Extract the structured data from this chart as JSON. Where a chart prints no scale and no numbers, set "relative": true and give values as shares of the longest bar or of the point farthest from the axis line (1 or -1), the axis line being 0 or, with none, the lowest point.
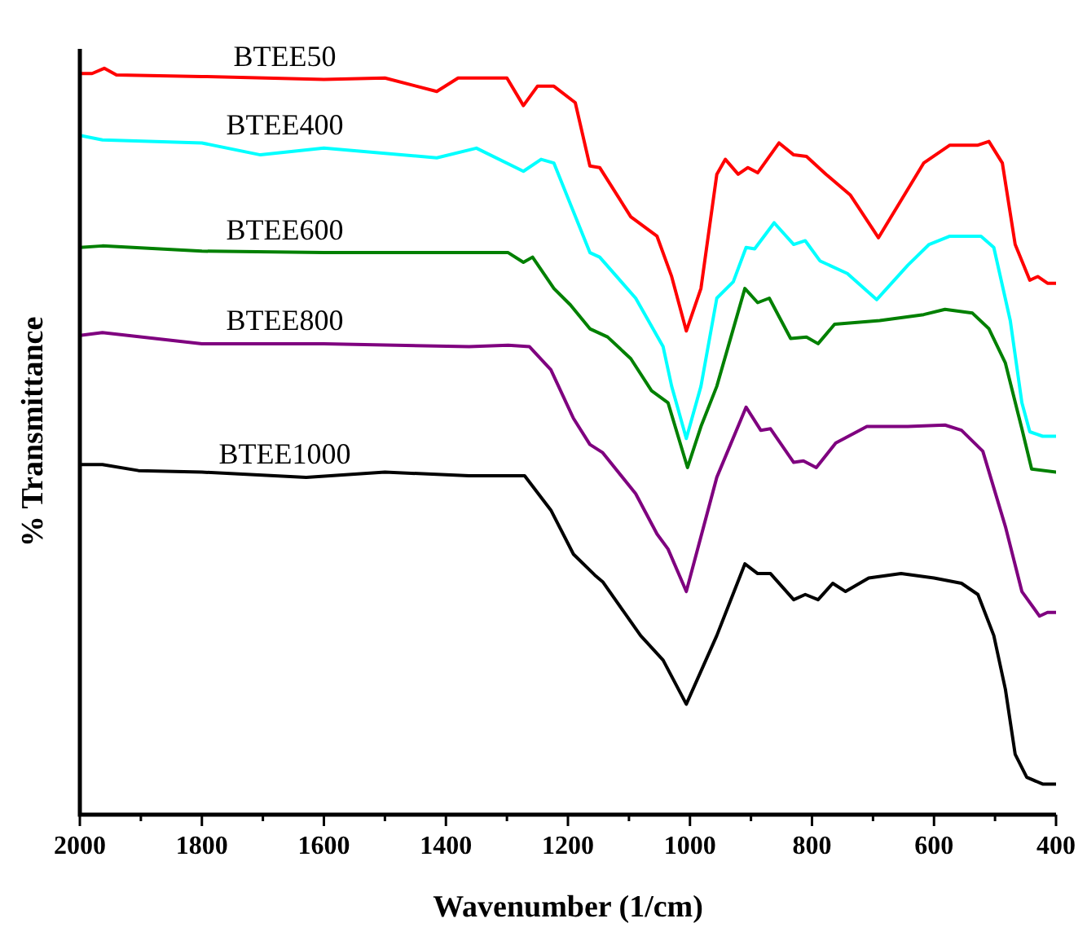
{
  "chart_data": {
    "type": "line",
    "relative": true,
    "xlabel": "Wavenumber (1/cm)",
    "ylabel": "% Transmittance",
    "xlim": [
      2000,
      400
    ],
    "xticks": [
      2000,
      {
        "value": 1900,
        "label": null
      },
      1800,
      {
        "value": 1700,
        "label": null
      },
      1600,
      {
        "value": 1500,
        "label": null
      },
      1400,
      {
        "value": 1300,
        "label": null
      },
      1200,
      {
        "value": 1100,
        "label": null
      },
      1000,
      {
        "value": 900,
        "label": null
      },
      800,
      {
        "value": 700,
        "label": null
      },
      600,
      {
        "value": 500,
        "label": null
      },
      400
    ],
    "tick_labels": "x",
    "legend": false,
    "marker": "none",
    "line_style": "solid",
    "series": [
      {
        "name": "BTEE50",
        "color": "#ff0000",
        "x": [
          2000,
          1980,
          1960,
          1940,
          1800,
          1600,
          1500,
          1415,
          1380,
          1300,
          1273,
          1250,
          1223,
          1188,
          1164,
          1148,
          1097,
          1054,
          1030,
          1006,
          982,
          956,
          942,
          921,
          905,
          889,
          854,
          830,
          809,
          777,
          737,
          691,
          654,
          617,
          574,
          528,
          510,
          488,
          467,
          443,
          430,
          414,
          400
        ],
        "values": [
          0.993,
          0.993,
          1.0,
          0.991,
          0.989,
          0.985,
          0.987,
          0.969,
          0.987,
          0.987,
          0.95,
          0.976,
          0.976,
          0.954,
          0.869,
          0.867,
          0.801,
          0.775,
          0.721,
          0.648,
          0.705,
          0.858,
          0.878,
          0.858,
          0.867,
          0.86,
          0.9,
          0.884,
          0.882,
          0.858,
          0.83,
          0.773,
          0.823,
          0.873,
          0.897,
          0.897,
          0.902,
          0.873,
          0.764,
          0.716,
          0.721,
          0.712,
          0.712
        ]
      },
      {
        "name": "BTEE400",
        "color": "#00ffff",
        "x": [
          2000,
          1963,
          1800,
          1704,
          1600,
          1415,
          1350,
          1273,
          1244,
          1223,
          1164,
          1148,
          1089,
          1044,
          1030,
          1006,
          982,
          956,
          929,
          908,
          894,
          862,
          830,
          811,
          787,
          742,
          694,
          643,
          608,
          574,
          523,
          502,
          475,
          456,
          443,
          422,
          400
        ],
        "values": [
          0.91,
          0.904,
          0.9,
          0.884,
          0.893,
          0.88,
          0.893,
          0.862,
          0.878,
          0.873,
          0.753,
          0.747,
          0.692,
          0.627,
          0.574,
          0.504,
          0.574,
          0.692,
          0.714,
          0.76,
          0.758,
          0.793,
          0.764,
          0.769,
          0.742,
          0.725,
          0.69,
          0.736,
          0.764,
          0.775,
          0.775,
          0.76,
          0.662,
          0.552,
          0.513,
          0.507,
          0.507
        ]
      },
      {
        "name": "BTEE600",
        "color": "#008000",
        "x": [
          2000,
          1963,
          1800,
          1600,
          1400,
          1298,
          1273,
          1258,
          1223,
          1196,
          1164,
          1135,
          1097,
          1063,
          1036,
          1004,
          982,
          956,
          910,
          889,
          870,
          835,
          809,
          790,
          763,
          689,
          617,
          582,
          537,
          510,
          483,
          456,
          440,
          400
        ],
        "values": [
          0.76,
          0.762,
          0.755,
          0.753,
          0.753,
          0.753,
          0.74,
          0.747,
          0.705,
          0.683,
          0.651,
          0.64,
          0.611,
          0.568,
          0.552,
          0.465,
          0.52,
          0.574,
          0.705,
          0.686,
          0.692,
          0.638,
          0.64,
          0.631,
          0.657,
          0.662,
          0.67,
          0.677,
          0.672,
          0.651,
          0.605,
          0.517,
          0.463,
          0.459
        ]
      },
      {
        "name": "BTEE800",
        "color": "#7f007f",
        "x": [
          2000,
          1963,
          1800,
          1600,
          1362,
          1298,
          1263,
          1228,
          1191,
          1164,
          1143,
          1089,
          1054,
          1036,
          1006,
          956,
          908,
          884,
          868,
          830,
          814,
          793,
          761,
          710,
          643,
          582,
          555,
          520,
          483,
          456,
          427,
          414,
          400
        ],
        "values": [
          0.642,
          0.646,
          0.631,
          0.631,
          0.627,
          0.629,
          0.627,
          0.596,
          0.531,
          0.496,
          0.485,
          0.43,
          0.376,
          0.356,
          0.299,
          0.452,
          0.546,
          0.515,
          0.517,
          0.472,
          0.474,
          0.465,
          0.498,
          0.52,
          0.52,
          0.522,
          0.515,
          0.487,
          0.386,
          0.299,
          0.266,
          0.271,
          0.271
        ]
      },
      {
        "name": "BTEE1000",
        "color": "#000000",
        "x": [
          2000,
          1963,
          1904,
          1800,
          1629,
          1500,
          1362,
          1271,
          1228,
          1191,
          1156,
          1143,
          1081,
          1044,
          1006,
          956,
          910,
          889,
          868,
          830,
          811,
          790,
          766,
          745,
          707,
          654,
          600,
          555,
          528,
          502,
          483,
          467,
          448,
          422,
          400
        ],
        "values": [
          0.469,
          0.469,
          0.461,
          0.459,
          0.452,
          0.459,
          0.454,
          0.454,
          0.408,
          0.349,
          0.321,
          0.312,
          0.24,
          0.207,
          0.148,
          0.24,
          0.336,
          0.323,
          0.323,
          0.288,
          0.295,
          0.288,
          0.31,
          0.299,
          0.317,
          0.323,
          0.317,
          0.31,
          0.295,
          0.24,
          0.168,
          0.081,
          0.05,
          0.041,
          0.041
        ]
      }
    ]
  }
}
